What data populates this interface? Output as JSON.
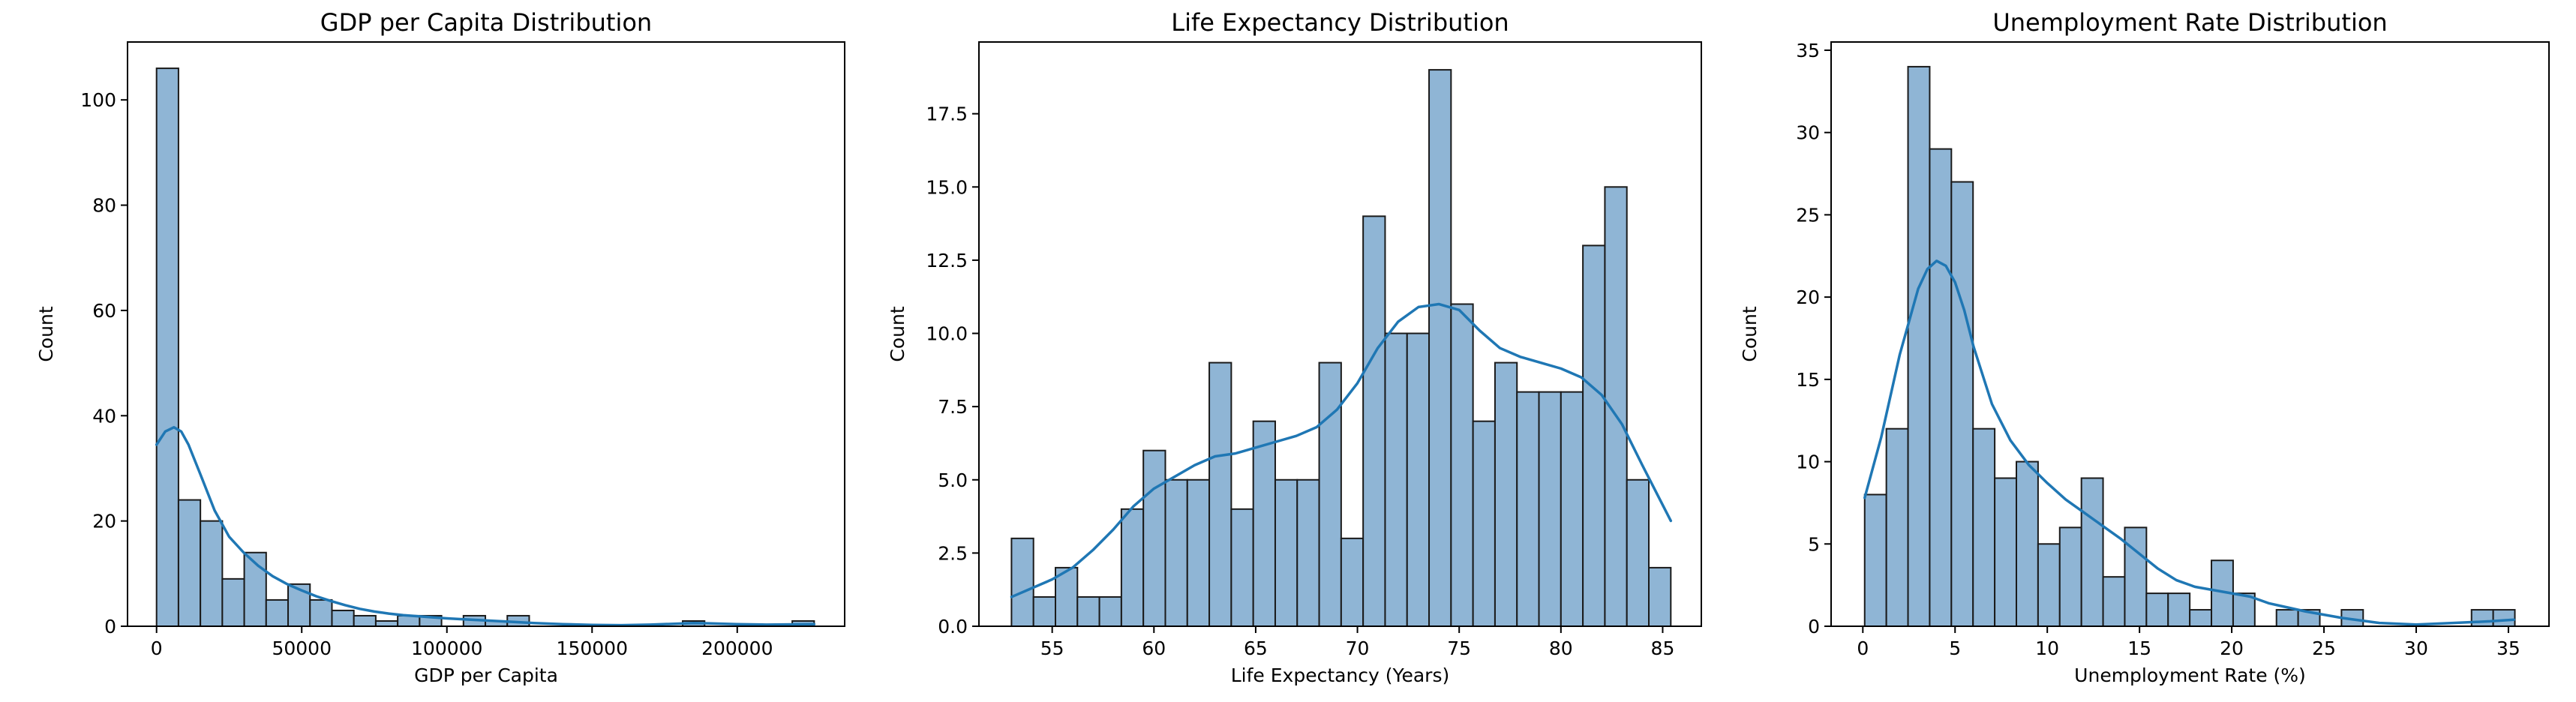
{
  "chart_data": [
    {
      "type": "histogram",
      "title": "GDP per Capita Distribution",
      "xlabel": "GDP per Capita",
      "ylabel": "Count",
      "xlim": [
        -10000,
        237000
      ],
      "ylim": [
        0,
        111
      ],
      "xticks": [
        0,
        50000,
        100000,
        150000,
        200000
      ],
      "xtick_labels": [
        "0",
        "50000",
        "100000",
        "150000",
        "200000"
      ],
      "yticks": [
        0,
        20,
        40,
        60,
        80,
        100
      ],
      "ytick_labels": [
        "0",
        "20",
        "40",
        "60",
        "80",
        "100"
      ],
      "bin_start": 0,
      "bin_width": 7550,
      "counts": [
        106,
        24,
        20,
        9,
        14,
        5,
        8,
        5,
        3,
        2,
        1,
        2,
        2,
        0,
        2,
        1,
        2,
        0,
        0,
        0,
        0,
        0,
        0,
        0,
        1,
        0,
        0,
        0,
        0,
        1
      ],
      "kde": {
        "x": [
          0,
          3000,
          6000,
          8500,
          11000,
          15000,
          20000,
          25000,
          30000,
          35000,
          40000,
          45000,
          50000,
          55000,
          60000,
          65000,
          70000,
          75000,
          80000,
          85000,
          90000,
          95000,
          100000,
          110000,
          120000,
          130000,
          140000,
          150000,
          160000,
          170000,
          180000,
          185000,
          190000,
          200000,
          210000,
          220000,
          226500
        ],
        "y": [
          34.5,
          37.0,
          37.8,
          37.0,
          34.5,
          29.0,
          22.0,
          17.0,
          14.0,
          11.5,
          9.5,
          8.0,
          6.8,
          5.7,
          4.8,
          4.0,
          3.3,
          2.8,
          2.4,
          2.1,
          1.9,
          1.7,
          1.5,
          1.2,
          0.9,
          0.6,
          0.4,
          0.25,
          0.2,
          0.3,
          0.5,
          0.6,
          0.55,
          0.4,
          0.3,
          0.35,
          0.4
        ]
      }
    },
    {
      "type": "histogram",
      "title": "Life Expectancy Distribution",
      "xlabel": "Life Expectancy (Years)",
      "ylabel": "Count",
      "xlim": [
        51.4,
        86.9
      ],
      "ylim": [
        0,
        19.95
      ],
      "xticks": [
        55,
        60,
        65,
        70,
        75,
        80,
        85
      ],
      "xtick_labels": [
        "55",
        "60",
        "65",
        "70",
        "75",
        "80",
        "85"
      ],
      "yticks": [
        0,
        2.5,
        5.0,
        7.5,
        10.0,
        12.5,
        15.0,
        17.5
      ],
      "ytick_labels": [
        "0.0",
        "2.5",
        "5.0",
        "7.5",
        "10.0",
        "12.5",
        "15.0",
        "17.5"
      ],
      "bin_start": 53.0,
      "bin_width": 1.08,
      "counts": [
        3,
        1,
        2,
        1,
        1,
        4,
        6,
        5,
        5,
        9,
        4,
        7,
        5,
        5,
        9,
        3,
        14,
        10,
        10,
        19,
        11,
        7,
        9,
        8,
        8,
        8,
        13,
        15,
        5,
        2
      ],
      "kde": {
        "x": [
          53.0,
          54.0,
          55.0,
          56.0,
          57.0,
          58.0,
          59.0,
          60.0,
          61.0,
          62.0,
          63.0,
          64.0,
          65.0,
          66.0,
          67.0,
          68.0,
          69.0,
          70.0,
          71.0,
          72.0,
          73.0,
          74.0,
          75.0,
          76.0,
          77.0,
          78.0,
          79.0,
          80.0,
          81.0,
          82.0,
          83.0,
          84.0,
          85.4
        ],
        "y": [
          1.0,
          1.3,
          1.6,
          2.0,
          2.6,
          3.3,
          4.1,
          4.7,
          5.1,
          5.5,
          5.8,
          5.9,
          6.1,
          6.3,
          6.5,
          6.8,
          7.4,
          8.3,
          9.5,
          10.4,
          10.9,
          11.0,
          10.8,
          10.1,
          9.5,
          9.2,
          9.0,
          8.8,
          8.5,
          7.9,
          6.9,
          5.5,
          3.6
        ]
      }
    },
    {
      "type": "histogram",
      "title": "Unemployment Rate Distribution",
      "xlabel": "Unemployment Rate (%)",
      "ylabel": "Count",
      "xlim": [
        -1.72,
        37.2
      ],
      "ylim": [
        0,
        35.5
      ],
      "xticks": [
        0,
        5,
        10,
        15,
        20,
        25,
        30,
        35
      ],
      "xtick_labels": [
        "0",
        "5",
        "10",
        "15",
        "20",
        "25",
        "30",
        "35"
      ],
      "yticks": [
        0,
        5,
        10,
        15,
        20,
        25,
        30,
        35
      ],
      "ytick_labels": [
        "0",
        "5",
        "10",
        "15",
        "20",
        "25",
        "30",
        "35"
      ],
      "bin_start": 0.1,
      "bin_width": 1.175,
      "counts": [
        8,
        12,
        34,
        29,
        27,
        12,
        9,
        10,
        5,
        6,
        9,
        3,
        6,
        2,
        2,
        1,
        4,
        2,
        0,
        1,
        1,
        0,
        1,
        0,
        0,
        0,
        0,
        0,
        1,
        1
      ],
      "kde": {
        "x": [
          0.1,
          1.0,
          2.0,
          3.0,
          3.5,
          4.0,
          4.5,
          5.0,
          5.5,
          6.0,
          7.0,
          8.0,
          9.0,
          10.0,
          11.0,
          12.0,
          13.0,
          14.0,
          15.0,
          16.0,
          17.0,
          18.0,
          19.0,
          20.0,
          21.0,
          22.0,
          24.0,
          26.0,
          28.0,
          30.0,
          32.0,
          34.0,
          35.3
        ],
        "y": [
          7.8,
          11.5,
          16.5,
          20.5,
          21.7,
          22.2,
          21.9,
          20.9,
          19.2,
          17.0,
          13.5,
          11.3,
          9.8,
          8.7,
          7.7,
          6.9,
          6.1,
          5.3,
          4.4,
          3.5,
          2.8,
          2.4,
          2.2,
          2.0,
          1.8,
          1.4,
          0.9,
          0.5,
          0.2,
          0.1,
          0.2,
          0.3,
          0.4
        ]
      }
    }
  ]
}
